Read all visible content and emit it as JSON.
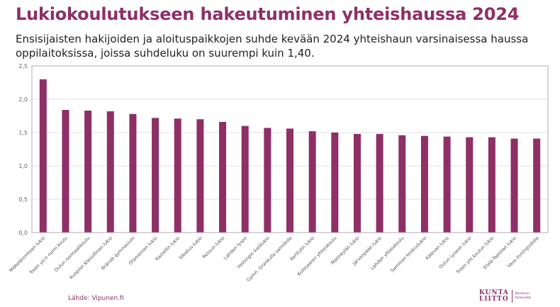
{
  "header": {
    "title": "Lukiokoulutukseen hakeutuminen yhteishaussa 2024",
    "subtitle": "Ensisijaisten hakijoiden ja aloituspaikkojen suhde kevään 2024 yhteishaun varsinaisessa haussa oppilaitoksissa, joissa suhdeluku on suurempi kuin 1,40."
  },
  "footer": {
    "source": "Lähde: Vipunen.fi",
    "logo_line1": "KUNTA",
    "logo_line2": "LIITTO",
    "logo_sub_line1": "Kommun-",
    "logo_sub_line2": "förbundet"
  },
  "colors": {
    "bar": "#8e2f66",
    "frame": "#b8a6b4",
    "grid": "#e2e2e2",
    "title": "#8e2f66"
  },
  "chart_data": {
    "type": "bar",
    "title": "",
    "xlabel": "",
    "ylabel": "",
    "ylim": [
      0,
      2.5
    ],
    "yticks": [
      "0,0",
      "0,5",
      "1,0",
      "1,5",
      "2,0",
      "2,5"
    ],
    "grid": true,
    "legend": "none",
    "categories": [
      "Mäkelänrinteen lukio",
      "Treen yo:n norm.koulu",
      "Oulun normaalikoulu",
      "Kuopion Klassillinen lukio",
      "Brändö gymnasium",
      "Otaniemen lukio",
      "Kastellin lukio",
      "Sibelius-lukio",
      "Ressun lukio",
      "Lahden lyseo",
      "Helsingin kielilukio",
      "Gymn. Grankulla samskola",
      "Kerttulin lukio",
      "Kulosaaren yhteiskoulu",
      "Matinkylän lukio",
      "Järvenpään lukio",
      "Lahden yhteiskoulu",
      "Sammon keskuslukio",
      "Kalevan lukio",
      "Oulun Lyseon lukio",
      "Treen yht.koulun lukio",
      "Etelä-Tapiolan lukio",
      "Vasa övningsskola"
    ],
    "series": [
      {
        "values": [
          2.3,
          1.84,
          1.83,
          1.82,
          1.78,
          1.72,
          1.71,
          1.7,
          1.66,
          1.6,
          1.57,
          1.56,
          1.52,
          1.5,
          1.48,
          1.48,
          1.46,
          1.45,
          1.44,
          1.43,
          1.43,
          1.41,
          1.41
        ]
      }
    ]
  }
}
